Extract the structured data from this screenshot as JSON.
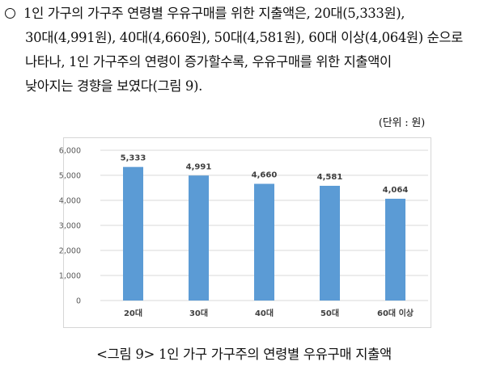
{
  "paragraph": {
    "lines": [
      "1인 가구의 가구주 연령별 우유구매를 위한 지출액은, 20대(5,333원),",
      "30대(4,991원), 40대(4,660원), 50대(4,581원), 60대 이상(4,064원) 순으로",
      "나타나, 1인 가구주의 연령이 증가할수록, 우유구매를 위한 지출액이",
      "낮아지는 경향을 보였다(그림 9)."
    ]
  },
  "unit_label": "(단위 : 원)",
  "caption": "<그림 9> 1인 가구 가구주의 연령별 우유구매 지출액",
  "colors": {
    "bar": "#5b9bd5",
    "grid": "#d9d9d9",
    "tick_text": "#595959",
    "label_text": "#404040"
  },
  "chart_data": {
    "type": "bar",
    "categories": [
      "20대",
      "30대",
      "40대",
      "50대",
      "60대 이상"
    ],
    "values": [
      5333,
      4991,
      4660,
      4581,
      4064
    ],
    "data_labels": [
      "5,333",
      "4,991",
      "4,660",
      "4,581",
      "4,064"
    ],
    "yticks": [
      "0",
      "1,000",
      "2,000",
      "3,000",
      "4,000",
      "5,000",
      "6,000"
    ],
    "ylim": [
      0,
      6000
    ],
    "grid": true,
    "title": "",
    "xlabel": "",
    "ylabel": ""
  }
}
